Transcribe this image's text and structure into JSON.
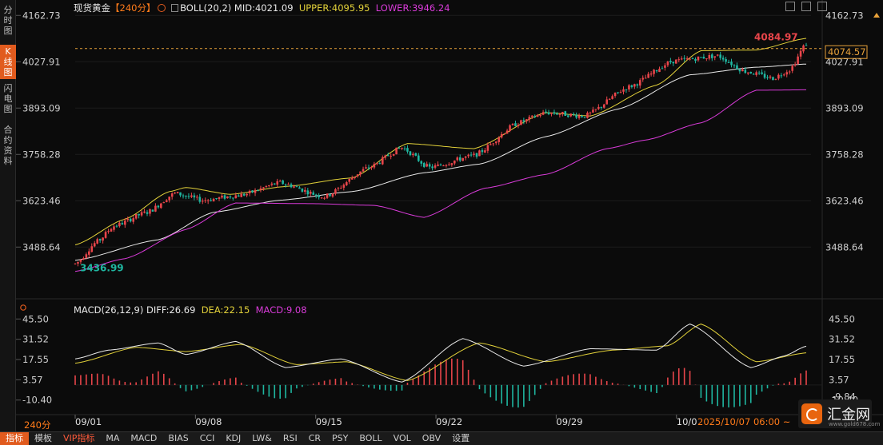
{
  "left_nav": [
    {
      "label": "分时图",
      "active": false
    },
    {
      "label": "K线图",
      "active": true
    },
    {
      "label": "闪电图",
      "active": false
    },
    {
      "label": "合约资料",
      "active": false
    }
  ],
  "legend": {
    "title": "现货黄金",
    "timeframe": "【240分】",
    "indicator": "BOLL(20,2)",
    "mid": "MID:4021.09",
    "upper": "UPPER:4095.95",
    "lower": "LOWER:3946.24"
  },
  "macd_legend": {
    "name": "MACD(26,12,9)",
    "diff": "DIFF:26.69",
    "dea": "DEA:22.15",
    "macd": "MACD:9.08"
  },
  "price_axis": {
    "ticks": [
      "4162.73",
      "4027.91",
      "3893.09",
      "3758.28",
      "3623.46",
      "3488.64"
    ],
    "current_price": "4074.57",
    "high_label": "4084.97",
    "low_label": "3436.99"
  },
  "macd_axis": {
    "ticks": [
      "45.50",
      "31.52",
      "17.55",
      "3.57",
      "-10.40"
    ],
    "cut_label": "-9.84"
  },
  "date_axis": [
    "09/01",
    "09/08",
    "09/15",
    "09/22",
    "09/29",
    "10/0"
  ],
  "crosshair_time": "2025/10/07 06:00 ~",
  "timeframe_bottom": "240分",
  "toolbar": [
    "指标",
    "模板",
    "VIP指标",
    "MA",
    "MACD",
    "BIAS",
    "CCI",
    "KDJ",
    "LW&",
    "RSI",
    "CR",
    "PSY",
    "BOLL",
    "VOL",
    "OBV",
    "设置"
  ],
  "logo": {
    "text": "汇金网",
    "url": "www.gold678.com"
  },
  "colors": {
    "up": "#e8454a",
    "down": "#1fb6a0",
    "upper": "#e2d13a",
    "mid": "#e9e9e9",
    "lower": "#d93bd9",
    "accent": "#e15b1e"
  },
  "chart_data": {
    "type": "candlestick",
    "price_range": [
      3436.99,
      4162.73
    ],
    "macd_range": [
      -10.4,
      45.5
    ],
    "anchors": {
      "price": [
        [
          0,
          3440
        ],
        [
          8,
          3505
        ],
        [
          14,
          3550
        ],
        [
          26,
          3590
        ],
        [
          36,
          3645
        ],
        [
          46,
          3625
        ],
        [
          60,
          3640
        ],
        [
          74,
          3676
        ],
        [
          90,
          3635
        ],
        [
          106,
          3720
        ],
        [
          118,
          3778
        ],
        [
          128,
          3720
        ],
        [
          144,
          3755
        ],
        [
          160,
          3850
        ],
        [
          170,
          3880
        ],
        [
          184,
          3870
        ],
        [
          200,
          3955
        ],
        [
          216,
          4030
        ],
        [
          232,
          4045
        ],
        [
          242,
          4000
        ],
        [
          252,
          3980
        ],
        [
          258,
          4005
        ],
        [
          264,
          4080
        ]
      ],
      "mid": [
        [
          0,
          3450
        ],
        [
          30,
          3510
        ],
        [
          50,
          3590
        ],
        [
          74,
          3625
        ],
        [
          100,
          3650
        ],
        [
          126,
          3705
        ],
        [
          146,
          3730
        ],
        [
          170,
          3810
        ],
        [
          196,
          3890
        ],
        [
          222,
          3990
        ],
        [
          246,
          4012
        ],
        [
          264,
          4021.09
        ]
      ],
      "upper": [
        [
          0,
          3495
        ],
        [
          18,
          3570
        ],
        [
          34,
          3650
        ],
        [
          40,
          3662
        ],
        [
          56,
          3642
        ],
        [
          76,
          3665
        ],
        [
          100,
          3690
        ],
        [
          120,
          3790
        ],
        [
          144,
          3775
        ],
        [
          170,
          3880
        ],
        [
          186,
          3870
        ],
        [
          210,
          3960
        ],
        [
          226,
          4060
        ],
        [
          246,
          4062
        ],
        [
          264,
          4095.95
        ]
      ],
      "lower": [
        [
          0,
          3418
        ],
        [
          18,
          3455
        ],
        [
          40,
          3540
        ],
        [
          58,
          3617
        ],
        [
          86,
          3615
        ],
        [
          108,
          3610
        ],
        [
          126,
          3575
        ],
        [
          148,
          3660
        ],
        [
          170,
          3700
        ],
        [
          192,
          3775
        ],
        [
          206,
          3800
        ],
        [
          226,
          3850
        ],
        [
          246,
          3945
        ],
        [
          264,
          3946.24
        ]
      ],
      "diff": [
        [
          0,
          18
        ],
        [
          12,
          24
        ],
        [
          30,
          29
        ],
        [
          40,
          21
        ],
        [
          58,
          30
        ],
        [
          76,
          12
        ],
        [
          96,
          18
        ],
        [
          118,
          2
        ],
        [
          140,
          32
        ],
        [
          162,
          13
        ],
        [
          186,
          25
        ],
        [
          210,
          24
        ],
        [
          222,
          42
        ],
        [
          244,
          12
        ],
        [
          256,
          20
        ],
        [
          264,
          26.69
        ]
      ],
      "dea": [
        [
          0,
          15
        ],
        [
          22,
          26
        ],
        [
          40,
          23
        ],
        [
          60,
          28
        ],
        [
          80,
          14
        ],
        [
          98,
          16
        ],
        [
          120,
          3
        ],
        [
          146,
          29
        ],
        [
          170,
          16
        ],
        [
          194,
          24
        ],
        [
          214,
          27
        ],
        [
          226,
          42
        ],
        [
          246,
          16
        ],
        [
          264,
          22.15
        ]
      ]
    }
  }
}
